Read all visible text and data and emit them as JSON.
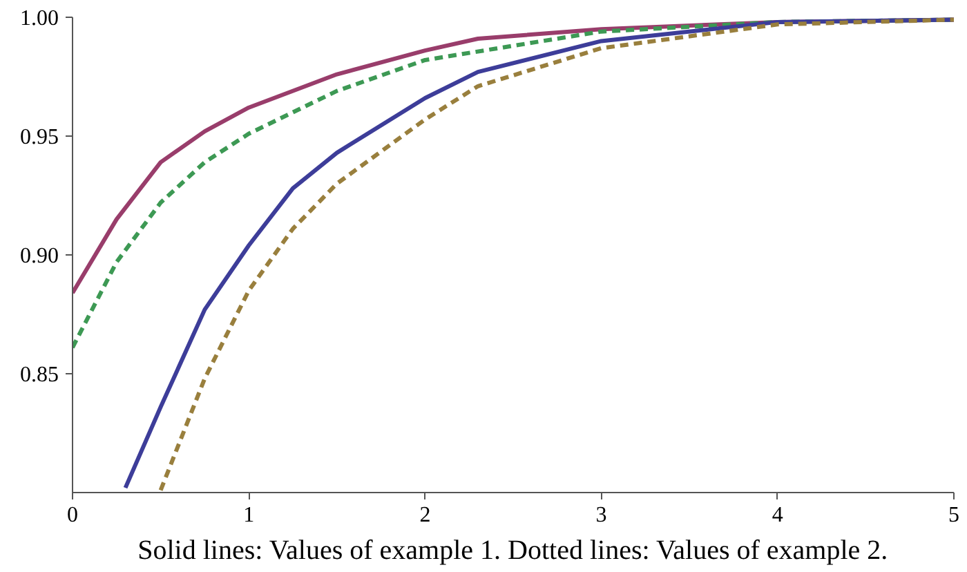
{
  "chart_data": {
    "type": "line",
    "xlim": [
      0,
      5
    ],
    "ylim": [
      0.8,
      1.0
    ],
    "xticks": [
      0,
      1,
      2,
      3,
      4,
      5
    ],
    "yticks": [
      0.85,
      {
        "value": 0.9,
        "label": "0.90"
      },
      0.95,
      {
        "value": 1.0,
        "label": "1.00"
      }
    ],
    "grid": false,
    "annotations": [
      "Solid lines: Values of example 1. Dotted lines: Values of example 2."
    ],
    "series": [
      {
        "color": "#993d6b",
        "line_style": "solid",
        "x": [
          0,
          0.25,
          0.5,
          0.75,
          1,
          1.5,
          2,
          2.3,
          3,
          4,
          5
        ],
        "values": [
          0.884,
          0.915,
          0.939,
          0.952,
          0.962,
          0.976,
          0.986,
          0.991,
          0.995,
          0.998,
          0.999
        ]
      },
      {
        "color": "#3d9954",
        "line_style": "dashed",
        "x": [
          0,
          0.25,
          0.5,
          0.75,
          1,
          1.5,
          2,
          3,
          4,
          5
        ],
        "values": [
          0.861,
          0.897,
          0.922,
          0.939,
          0.951,
          0.969,
          0.982,
          0.994,
          0.998,
          0.999
        ]
      },
      {
        "color": "#3d3d99",
        "line_style": "solid",
        "x": [
          0.3,
          0.5,
          0.75,
          1,
          1.25,
          1.5,
          2,
          2.3,
          3,
          4,
          5
        ],
        "values": [
          0.802,
          0.836,
          0.877,
          0.904,
          0.928,
          0.943,
          0.966,
          0.977,
          0.99,
          0.998,
          0.999
        ]
      },
      {
        "color": "#997f3d",
        "line_style": "dashed",
        "x": [
          0.5,
          0.75,
          1,
          1.25,
          1.5,
          2,
          2.3,
          3,
          4,
          5
        ],
        "values": [
          0.801,
          0.848,
          0.885,
          0.911,
          0.93,
          0.957,
          0.971,
          0.987,
          0.997,
          0.999
        ]
      }
    ]
  }
}
